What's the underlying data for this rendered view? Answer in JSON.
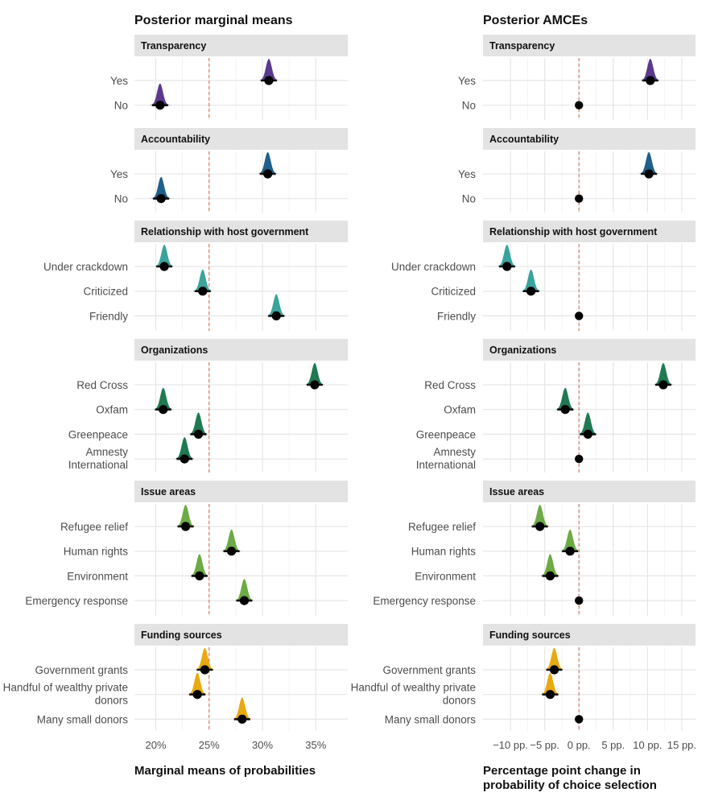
{
  "chart_data": [
    {
      "type": "ridgeline-point",
      "title": "Posterior marginal means",
      "xlabel": "Marginal means of probabilities",
      "xlim": [
        18,
        38
      ],
      "xticks": [
        20,
        25,
        30,
        35
      ],
      "xtick_labels": [
        "20%",
        "25%",
        "30%",
        "35%"
      ],
      "reference_line": 25,
      "facets": [
        {
          "name": "Transparency",
          "color": "#5b3a8e",
          "levels": [
            {
              "label": "Yes",
              "value": 30.6
            },
            {
              "label": "No",
              "value": 20.4
            }
          ]
        },
        {
          "name": "Accountability",
          "color": "#1f5f8b",
          "levels": [
            {
              "label": "Yes",
              "value": 30.5
            },
            {
              "label": "No",
              "value": 20.5
            }
          ]
        },
        {
          "name": "Relationship with host government",
          "color": "#3aa39c",
          "levels": [
            {
              "label": "Under crackdown",
              "value": 20.8
            },
            {
              "label": "Criticized",
              "value": 24.4
            },
            {
              "label": "Friendly",
              "value": 31.3
            }
          ]
        },
        {
          "name": "Organizations",
          "color": "#1f7a52",
          "levels": [
            {
              "label": "Red Cross",
              "value": 34.9
            },
            {
              "label": "Oxfam",
              "value": 20.7
            },
            {
              "label": "Greenpeace",
              "value": 24.0
            },
            {
              "label": "Amnesty International",
              "value": 22.7
            }
          ]
        },
        {
          "name": "Issue areas",
          "color": "#6daa45",
          "levels": [
            {
              "label": "Refugee relief",
              "value": 22.8
            },
            {
              "label": "Human rights",
              "value": 27.1
            },
            {
              "label": "Environment",
              "value": 24.1
            },
            {
              "label": "Emergency response",
              "value": 28.3
            }
          ]
        },
        {
          "name": "Funding sources",
          "color": "#e8a911",
          "levels": [
            {
              "label": "Government grants",
              "value": 24.6
            },
            {
              "label": "Handful of wealthy private donors",
              "value": 23.9
            },
            {
              "label": "Many small donors",
              "value": 28.1
            }
          ]
        }
      ]
    },
    {
      "type": "ridgeline-point",
      "title": "Posterior AMCEs",
      "xlabel": "Percentage point change in probability of choice selection",
      "xlim": [
        -14,
        17
      ],
      "xticks": [
        -10,
        -5,
        0,
        5,
        10,
        15
      ],
      "xtick_labels": [
        "−10 pp.",
        "−5 pp.",
        "0 pp.",
        "5 pp.",
        "10 pp.",
        "15 pp."
      ],
      "reference_line": 0,
      "facets": [
        {
          "name": "Transparency",
          "color": "#5b3a8e",
          "levels": [
            {
              "label": "Yes",
              "value": 10.4
            },
            {
              "label": "No",
              "value": 0,
              "reference": true
            }
          ]
        },
        {
          "name": "Accountability",
          "color": "#1f5f8b",
          "levels": [
            {
              "label": "Yes",
              "value": 10.2
            },
            {
              "label": "No",
              "value": 0,
              "reference": true
            }
          ]
        },
        {
          "name": "Relationship with host government",
          "color": "#3aa39c",
          "levels": [
            {
              "label": "Under crackdown",
              "value": -10.5
            },
            {
              "label": "Criticized",
              "value": -7.0
            },
            {
              "label": "Friendly",
              "value": 0,
              "reference": true
            }
          ]
        },
        {
          "name": "Organizations",
          "color": "#1f7a52",
          "levels": [
            {
              "label": "Red Cross",
              "value": 12.3
            },
            {
              "label": "Oxfam",
              "value": -2.0
            },
            {
              "label": "Greenpeace",
              "value": 1.3
            },
            {
              "label": "Amnesty International",
              "value": 0,
              "reference": true
            }
          ]
        },
        {
          "name": "Issue areas",
          "color": "#6daa45",
          "levels": [
            {
              "label": "Refugee relief",
              "value": -5.7
            },
            {
              "label": "Human rights",
              "value": -1.3
            },
            {
              "label": "Environment",
              "value": -4.2
            },
            {
              "label": "Emergency response",
              "value": 0,
              "reference": true
            }
          ]
        },
        {
          "name": "Funding sources",
          "color": "#e8a911",
          "levels": [
            {
              "label": "Government grants",
              "value": -3.6
            },
            {
              "label": "Handful of wealthy private donors",
              "value": -4.2
            },
            {
              "label": "Many small donors",
              "value": 0,
              "reference": true
            }
          ]
        }
      ]
    }
  ]
}
